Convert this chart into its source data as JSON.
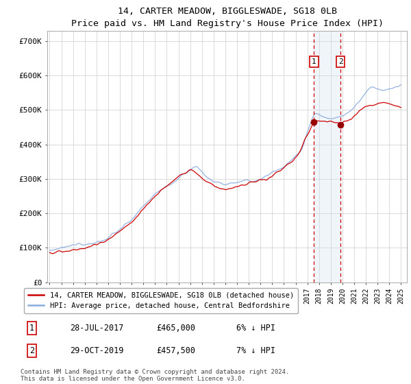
{
  "title": "14, CARTER MEADOW, BIGGLESWADE, SG18 0LB",
  "subtitle": "Price paid vs. HM Land Registry's House Price Index (HPI)",
  "ylabel_ticks": [
    "£0",
    "£100K",
    "£200K",
    "£300K",
    "£400K",
    "£500K",
    "£600K",
    "£700K"
  ],
  "ytick_vals": [
    0,
    100000,
    200000,
    300000,
    400000,
    500000,
    600000,
    700000
  ],
  "ylim": [
    0,
    730000
  ],
  "xlim_start": 1994.8,
  "xlim_end": 2025.5,
  "sale1_date": 2017.57,
  "sale1_price": 465000,
  "sale1_label": "1",
  "sale2_date": 2019.83,
  "sale2_price": 457500,
  "sale2_label": "2",
  "legend_line1": "14, CARTER MEADOW, BIGGLESWADE, SG18 0LB (detached house)",
  "legend_line2": "HPI: Average price, detached house, Central Bedfordshire",
  "table_row1": [
    "1",
    "28-JUL-2017",
    "£465,000",
    "6% ↓ HPI"
  ],
  "table_row2": [
    "2",
    "29-OCT-2019",
    "£457,500",
    "7% ↓ HPI"
  ],
  "footer": "Contains HM Land Registry data © Crown copyright and database right 2024.\nThis data is licensed under the Open Government Licence v3.0.",
  "line_color_red": "#cc0000",
  "line_color_blue": "#88aadd",
  "shade_color": "#d0dff0",
  "dashed_color": "#cc0000",
  "background_color": "#ffffff",
  "grid_color": "#cccccc",
  "title_fontsize": 10,
  "subtitle_fontsize": 9
}
